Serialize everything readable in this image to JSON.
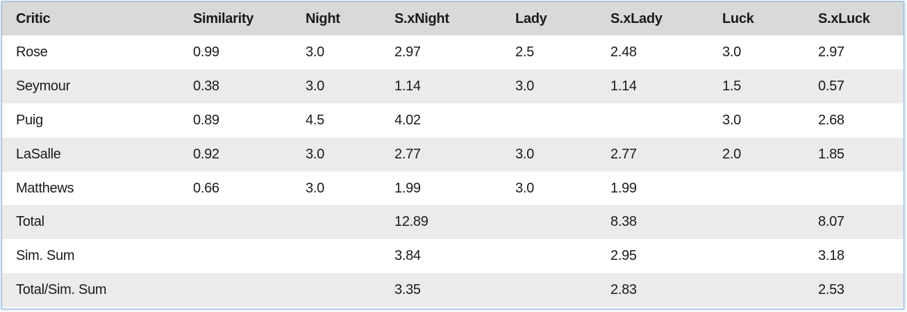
{
  "table": {
    "headers": [
      "Critic",
      "Similarity",
      "Night",
      "S.xNight",
      "Lady",
      "S.xLady",
      "Luck",
      "S.xLuck"
    ],
    "rows": [
      [
        "Rose",
        "0.99",
        "3.0",
        "2.97",
        "2.5",
        "2.48",
        "3.0",
        "2.97"
      ],
      [
        "Seymour",
        "0.38",
        "3.0",
        "1.14",
        "3.0",
        "1.14",
        "1.5",
        "0.57"
      ],
      [
        "Puig",
        "0.89",
        "4.5",
        "4.02",
        "",
        "",
        "3.0",
        "2.68"
      ],
      [
        "LaSalle",
        "0.92",
        "3.0",
        "2.77",
        "3.0",
        "2.77",
        "2.0",
        "1.85"
      ],
      [
        "Matthews",
        "0.66",
        "3.0",
        "1.99",
        "3.0",
        "1.99",
        "",
        ""
      ],
      [
        "Total",
        "",
        "",
        "12.89",
        "",
        "8.38",
        "",
        "8.07"
      ],
      [
        "Sim. Sum",
        "",
        "",
        "3.84",
        "",
        "2.95",
        "",
        "3.18"
      ],
      [
        "Total/Sim. Sum",
        "",
        "",
        "3.35",
        "",
        "2.83",
        "",
        "2.53"
      ]
    ]
  }
}
